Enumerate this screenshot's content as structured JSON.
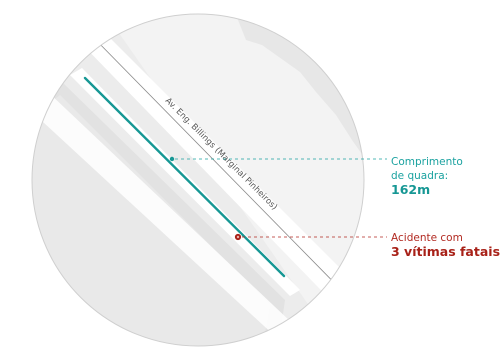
{
  "map": {
    "street_name": "Av. Eng. Billings (Marginal Pinheiros)"
  },
  "annotations": {
    "block_length": {
      "line1": "Comprimento",
      "line2": "de quadra:",
      "value": "162m",
      "color": "#1ba2a0"
    },
    "accident": {
      "line1": "Acidente com",
      "value": "3 vítimas fatais",
      "color": "#a82118"
    }
  },
  "colors": {
    "block_fill": "#e6e6e6",
    "road_fill": "#ffffff",
    "background_fill": "#ededed",
    "circle_outline": "#d3d3d3"
  }
}
